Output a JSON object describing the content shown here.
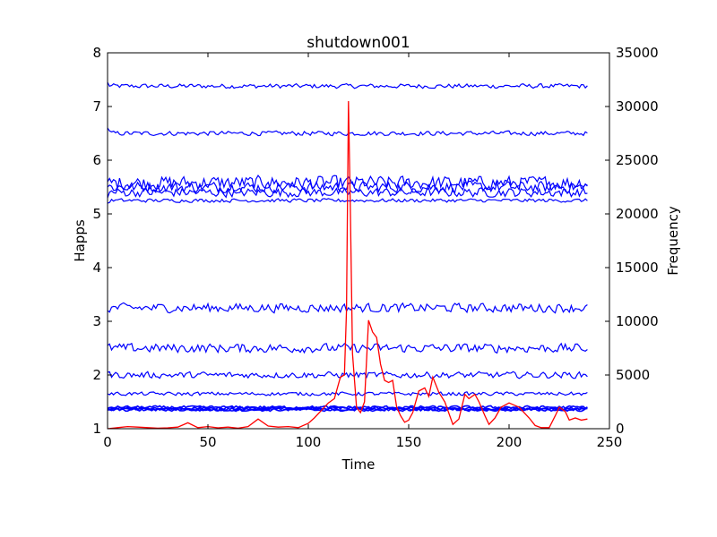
{
  "chart_data": {
    "type": "line",
    "title": "shutdown001",
    "xlabel": "Time",
    "ylabel": "Happs",
    "y2label": "Frequency",
    "xlim": [
      0,
      250
    ],
    "ylim": [
      1,
      8
    ],
    "y2lim": [
      0,
      35000
    ],
    "xticks": [
      "0",
      "50",
      "100",
      "150",
      "200",
      "250"
    ],
    "yticks": [
      "1",
      "2",
      "3",
      "4",
      "5",
      "6",
      "7",
      "8"
    ],
    "y2ticks": [
      "0",
      "5000",
      "10000",
      "15000",
      "20000",
      "25000",
      "30000",
      "35000"
    ],
    "grid": false,
    "legend": "none",
    "colors": {
      "left_series": "#0000ff",
      "right_series": "#ff0000"
    },
    "left_axis_series": [
      {
        "level": 7.38,
        "amplitude": 0.05,
        "start": 7.45
      },
      {
        "level": 6.5,
        "amplitude": 0.05,
        "start": 6.6
      },
      {
        "level": 5.58,
        "amplitude": 0.15,
        "start": 5.6
      },
      {
        "level": 5.5,
        "amplitude": 0.12,
        "start": 5.5
      },
      {
        "level": 5.4,
        "amplitude": 0.1,
        "start": 5.3
      },
      {
        "level": 5.25,
        "amplitude": 0.04,
        "start": 5.2
      },
      {
        "level": 3.25,
        "amplitude": 0.1,
        "start": 3.2
      },
      {
        "level": 2.5,
        "amplitude": 0.1,
        "start": 2.55
      },
      {
        "level": 2.0,
        "amplitude": 0.07,
        "start": 2.05
      },
      {
        "level": 1.65,
        "amplitude": 0.04,
        "start": 1.65
      },
      {
        "level": 1.4,
        "amplitude": 0.03,
        "start": 1.38
      },
      {
        "level": 1.38,
        "amplitude": 0.03,
        "start": 1.38
      },
      {
        "level": 1.36,
        "amplitude": 0.03,
        "start": 1.35
      },
      {
        "level": 1.35,
        "amplitude": 0.03,
        "start": 1.35
      }
    ],
    "right_axis_series": {
      "x": [
        0,
        5,
        10,
        15,
        20,
        25,
        30,
        35,
        40,
        45,
        50,
        55,
        60,
        65,
        70,
        75,
        80,
        85,
        90,
        95,
        100,
        103,
        106,
        110,
        113,
        116,
        118,
        119,
        120,
        121,
        122,
        124,
        126,
        128,
        130,
        132,
        134,
        136,
        138,
        140,
        142,
        144,
        146,
        148,
        150,
        152,
        155,
        158,
        160,
        162,
        165,
        168,
        172,
        175,
        178,
        180,
        183,
        185,
        188,
        190,
        193,
        196,
        200,
        205,
        210,
        213,
        216,
        220,
        223,
        225,
        228,
        230,
        233,
        236,
        239
      ],
      "values": [
        0,
        100,
        200,
        150,
        100,
        50,
        80,
        150,
        550,
        100,
        200,
        80,
        150,
        50,
        200,
        900,
        250,
        150,
        200,
        100,
        500,
        1000,
        1600,
        2400,
        2800,
        4800,
        5000,
        11000,
        30500,
        20000,
        7000,
        2000,
        1500,
        2500,
        10100,
        9000,
        8500,
        6000,
        4500,
        4300,
        4500,
        2000,
        1200,
        600,
        800,
        1500,
        3500,
        3800,
        3000,
        4800,
        3400,
        2500,
        400,
        900,
        3200,
        2800,
        3200,
        2500,
        1200,
        400,
        1000,
        2000,
        2400,
        2000,
        1000,
        300,
        100,
        100,
        1200,
        2000,
        1600,
        800,
        1000,
        800,
        900
      ]
    }
  }
}
